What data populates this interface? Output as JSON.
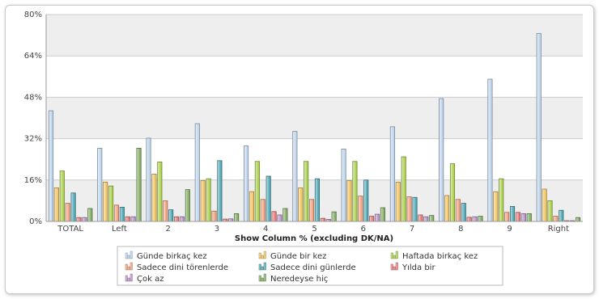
{
  "chart_data": {
    "type": "bar",
    "xlabel": "Show Column % (excluding DK/NA)",
    "ylabel": "",
    "ylim": [
      0,
      80
    ],
    "yticks": [
      "0%",
      "16%",
      "32%",
      "48%",
      "64%",
      "80%"
    ],
    "ytick_values": [
      0,
      16,
      32,
      48,
      64,
      80
    ],
    "grid": true,
    "legend_placement": "bottom",
    "categories": [
      "TOTAL",
      "Left",
      "2",
      "3",
      "4",
      "5",
      "6",
      "7",
      "8",
      "9",
      "Right"
    ],
    "series": [
      {
        "name": "Günde birkaç kez",
        "color": "#bcd3ec",
        "values": [
          42.8,
          28.3,
          32.2,
          37.8,
          29.2,
          34.8,
          28.0,
          36.6,
          47.5,
          55.0,
          72.7
        ]
      },
      {
        "name": "Günde bir kez",
        "color": "#f3c35d",
        "values": [
          13.0,
          15.2,
          18.3,
          15.8,
          11.5,
          13.0,
          15.8,
          15.2,
          10.0,
          11.5,
          12.5
        ]
      },
      {
        "name": "Haftada birkaç kez",
        "color": "#a9cf48",
        "values": [
          19.5,
          13.7,
          23.0,
          16.5,
          23.2,
          23.2,
          23.2,
          25.0,
          22.3,
          16.5,
          8.0
        ]
      },
      {
        "name": "Sadece dini törenlerde",
        "color": "#f3a07c",
        "values": [
          7.0,
          6.3,
          8.0,
          4.0,
          8.5,
          8.5,
          9.8,
          9.5,
          8.5,
          3.5,
          2.0
        ]
      },
      {
        "name": "Sadece dini günlerde",
        "color": "#4aa5b2",
        "values": [
          11.0,
          5.5,
          4.5,
          23.5,
          17.5,
          16.5,
          16.0,
          9.3,
          7.0,
          5.8,
          4.3
        ]
      },
      {
        "name": "Yılda bir",
        "color": "#e87878",
        "values": [
          1.5,
          1.8,
          1.8,
          0.9,
          3.8,
          1.2,
          2.0,
          2.5,
          1.6,
          3.5,
          0.3
        ]
      },
      {
        "name": "Çok az",
        "color": "#b893c9",
        "values": [
          1.5,
          1.8,
          1.8,
          1.0,
          2.5,
          0.8,
          2.8,
          1.8,
          1.8,
          3.0,
          0.3
        ]
      },
      {
        "name": "Neredeyse hiç",
        "color": "#7faa5f",
        "values": [
          5.0,
          28.3,
          12.3,
          3.0,
          5.0,
          3.7,
          5.3,
          2.3,
          2.0,
          3.0,
          1.5
        ]
      }
    ]
  }
}
